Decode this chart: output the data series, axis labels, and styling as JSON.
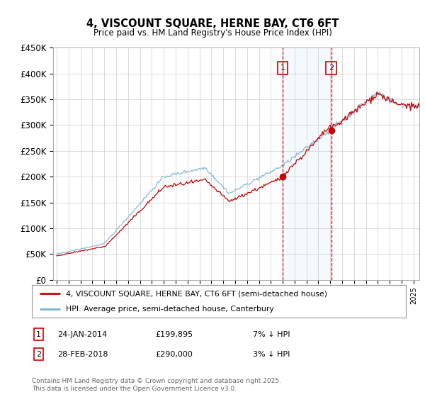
{
  "title": "4, VISCOUNT SQUARE, HERNE BAY, CT6 6FT",
  "subtitle": "Price paid vs. HM Land Registry's House Price Index (HPI)",
  "ylim": [
    0,
    450000
  ],
  "yticks": [
    0,
    50000,
    100000,
    150000,
    200000,
    250000,
    300000,
    350000,
    400000,
    450000
  ],
  "ytick_labels": [
    "£0",
    "£50K",
    "£100K",
    "£150K",
    "£200K",
    "£250K",
    "£300K",
    "£350K",
    "£400K",
    "£450K"
  ],
  "hpi_color": "#7ab0d4",
  "price_color": "#cc0000",
  "vline_color": "#cc0000",
  "shade_color": "#ddeef7",
  "marker1_year": 2014,
  "marker1_month": 1,
  "marker2_year": 2018,
  "marker2_month": 2,
  "marker1_price": 199895,
  "marker2_price": 290000,
  "legend1": "4, VISCOUNT SQUARE, HERNE BAY, CT6 6FT (semi-detached house)",
  "legend2": "HPI: Average price, semi-detached house, Canterbury",
  "footnote": "Contains HM Land Registry data © Crown copyright and database right 2025.\nThis data is licensed under the Open Government Licence v3.0.",
  "transaction1_label": "1",
  "transaction1_date": "24-JAN-2014",
  "transaction1_price": "£199,895",
  "transaction1_hpi": "7% ↓ HPI",
  "transaction2_label": "2",
  "transaction2_date": "28-FEB-2018",
  "transaction2_price": "£290,000",
  "transaction2_hpi": "3% ↓ HPI",
  "background_color": "#ffffff",
  "grid_color": "#cccccc",
  "xlim_start": 1994.7,
  "xlim_end": 2025.5
}
